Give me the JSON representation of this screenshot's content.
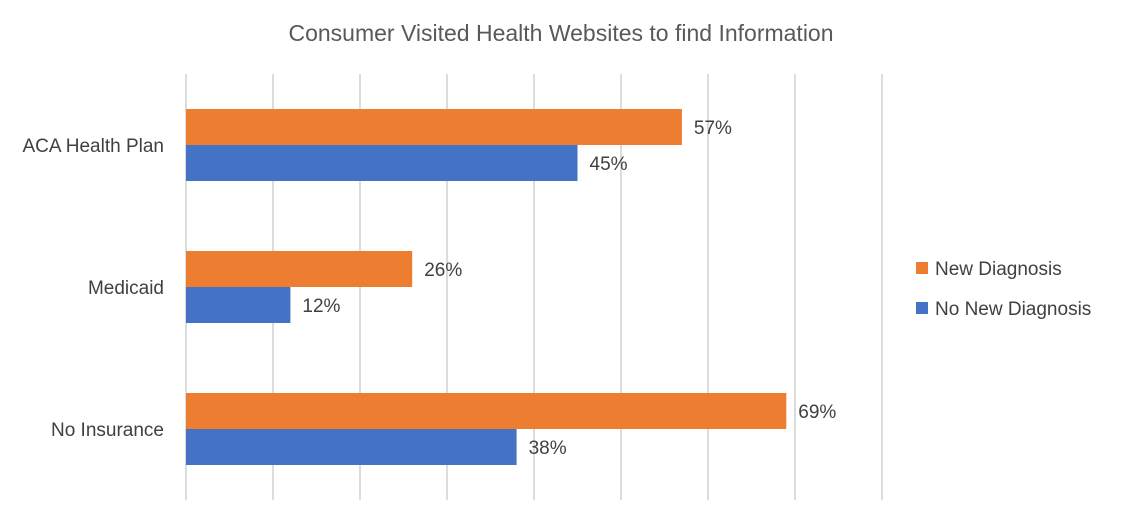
{
  "chart_data": {
    "type": "bar",
    "orientation": "horizontal",
    "title": "Consumer Visited Health Websites to find Information",
    "categories": [
      "ACA Health Plan",
      "Medicaid",
      "No Insurance"
    ],
    "series": [
      {
        "name": "New Diagnosis",
        "color": "#ED7D31",
        "values": [
          57,
          26,
          69
        ],
        "labels": [
          "57%",
          "26%",
          "69%"
        ]
      },
      {
        "name": "No New Diagnosis",
        "color": "#4472C4",
        "values": [
          45,
          12,
          38
        ],
        "labels": [
          "45%",
          "12%",
          "38%"
        ]
      }
    ],
    "xlim": [
      0,
      80
    ],
    "x_major_unit": 10,
    "x_axis_labels_visible": false,
    "value_suffix": "%",
    "grid": "vertical",
    "legend_position": "right"
  }
}
